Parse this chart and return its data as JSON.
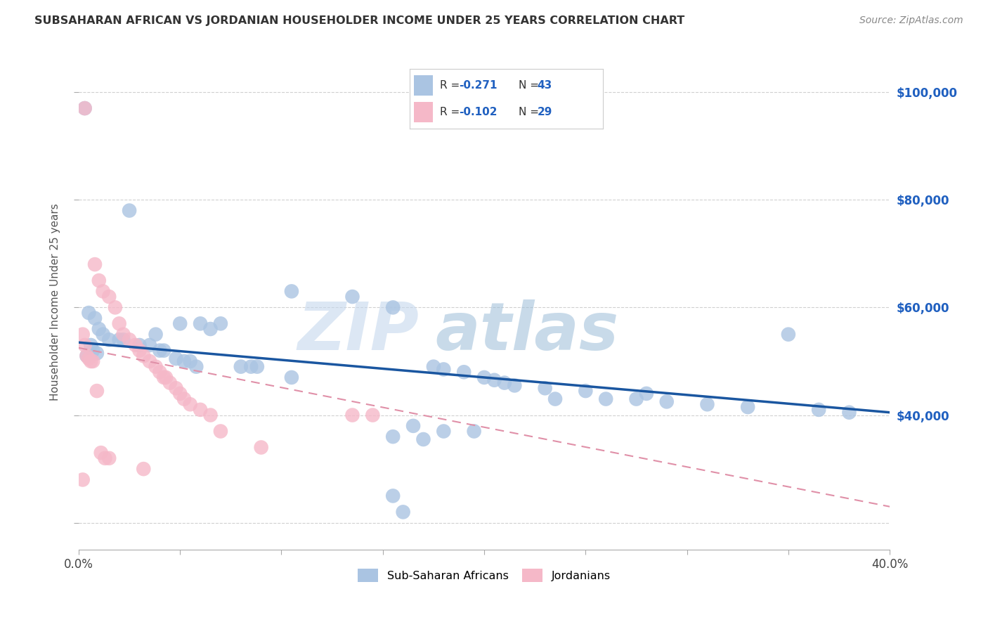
{
  "title": "SUBSAHARAN AFRICAN VS JORDANIAN HOUSEHOLDER INCOME UNDER 25 YEARS CORRELATION CHART",
  "source": "Source: ZipAtlas.com",
  "ylabel": "Householder Income Under 25 years",
  "xmin": 0.0,
  "xmax": 0.4,
  "ymin": 15000,
  "ymax": 107000,
  "legend_label_blue": "Sub-Saharan Africans",
  "legend_label_pink": "Jordanians",
  "color_blue": "#aac4e2",
  "color_blue_line": "#1a56a0",
  "color_pink": "#f5b8c8",
  "color_pink_line": "#e07090",
  "color_pink_line_dash": "#e090a8",
  "watermark_zip": "ZIP",
  "watermark_atlas": "atlas",
  "blue_trendline": [
    0.0,
    53500,
    0.4,
    40500
  ],
  "pink_trendline": [
    0.0,
    52500,
    0.4,
    23000
  ],
  "ytick_vals": [
    20000,
    40000,
    60000,
    80000,
    100000
  ],
  "ytick_labels": [
    "",
    "$40,000",
    "$60,000",
    "$80,000",
    "$100,000"
  ],
  "xtick_vals": [
    0.0,
    0.05,
    0.1,
    0.15,
    0.2,
    0.25,
    0.3,
    0.35,
    0.4
  ],
  "blue_points": [
    [
      0.003,
      97000
    ],
    [
      0.025,
      78000
    ],
    [
      0.105,
      63000
    ],
    [
      0.135,
      62000
    ],
    [
      0.155,
      60000
    ],
    [
      0.005,
      59000
    ],
    [
      0.008,
      58000
    ],
    [
      0.05,
      57000
    ],
    [
      0.06,
      57000
    ],
    [
      0.07,
      57000
    ],
    [
      0.065,
      56000
    ],
    [
      0.01,
      56000
    ],
    [
      0.012,
      55000
    ],
    [
      0.038,
      55000
    ],
    [
      0.015,
      54000
    ],
    [
      0.02,
      54000
    ],
    [
      0.022,
      54000
    ],
    [
      0.03,
      53000
    ],
    [
      0.035,
      53000
    ],
    [
      0.006,
      53000
    ],
    [
      0.04,
      52000
    ],
    [
      0.042,
      52000
    ],
    [
      0.007,
      52000
    ],
    [
      0.009,
      51500
    ],
    [
      0.004,
      51000
    ],
    [
      0.048,
      50500
    ],
    [
      0.052,
      50000
    ],
    [
      0.055,
      50000
    ],
    [
      0.058,
      49000
    ],
    [
      0.08,
      49000
    ],
    [
      0.085,
      49000
    ],
    [
      0.088,
      49000
    ],
    [
      0.175,
      49000
    ],
    [
      0.18,
      48500
    ],
    [
      0.19,
      48000
    ],
    [
      0.105,
      47000
    ],
    [
      0.2,
      47000
    ],
    [
      0.205,
      46500
    ],
    [
      0.21,
      46000
    ],
    [
      0.215,
      45500
    ],
    [
      0.23,
      45000
    ],
    [
      0.25,
      44500
    ],
    [
      0.28,
      44000
    ],
    [
      0.235,
      43000
    ],
    [
      0.26,
      43000
    ],
    [
      0.275,
      43000
    ],
    [
      0.29,
      42500
    ],
    [
      0.31,
      42000
    ],
    [
      0.33,
      41500
    ],
    [
      0.35,
      55000
    ],
    [
      0.365,
      41000
    ],
    [
      0.38,
      40500
    ],
    [
      0.165,
      38000
    ],
    [
      0.18,
      37000
    ],
    [
      0.195,
      37000
    ],
    [
      0.155,
      36000
    ],
    [
      0.17,
      35500
    ],
    [
      0.155,
      25000
    ],
    [
      0.16,
      22000
    ]
  ],
  "pink_points": [
    [
      0.003,
      97000
    ],
    [
      0.008,
      68000
    ],
    [
      0.01,
      65000
    ],
    [
      0.012,
      63000
    ],
    [
      0.015,
      62000
    ],
    [
      0.018,
      60000
    ],
    [
      0.02,
      57000
    ],
    [
      0.002,
      55000
    ],
    [
      0.022,
      55000
    ],
    [
      0.025,
      54000
    ],
    [
      0.003,
      53000
    ],
    [
      0.028,
      53000
    ],
    [
      0.03,
      52000
    ],
    [
      0.004,
      51000
    ],
    [
      0.032,
      51000
    ],
    [
      0.005,
      50500
    ],
    [
      0.006,
      50000
    ],
    [
      0.007,
      50000
    ],
    [
      0.035,
      50000
    ],
    [
      0.038,
      49000
    ],
    [
      0.04,
      48000
    ],
    [
      0.042,
      47000
    ],
    [
      0.043,
      47000
    ],
    [
      0.045,
      46000
    ],
    [
      0.048,
      45000
    ],
    [
      0.009,
      44500
    ],
    [
      0.05,
      44000
    ],
    [
      0.052,
      43000
    ],
    [
      0.055,
      42000
    ],
    [
      0.06,
      41000
    ],
    [
      0.065,
      40000
    ],
    [
      0.135,
      40000
    ],
    [
      0.145,
      40000
    ],
    [
      0.07,
      37000
    ],
    [
      0.09,
      34000
    ],
    [
      0.011,
      33000
    ],
    [
      0.013,
      32000
    ],
    [
      0.015,
      32000
    ],
    [
      0.032,
      30000
    ],
    [
      0.002,
      28000
    ]
  ]
}
